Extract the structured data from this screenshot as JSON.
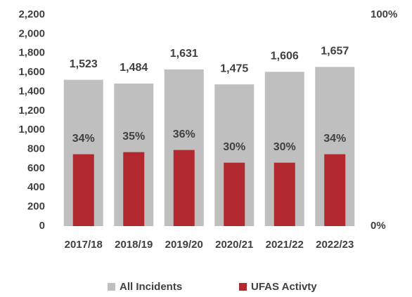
{
  "chart_data": {
    "type": "bar",
    "categories": [
      "2017/18",
      "2018/19",
      "2019/20",
      "2020/21",
      "2021/22",
      "2022/23"
    ],
    "series": [
      {
        "name": "All Incidents",
        "color": "#bfbfbf",
        "values": [
          1523,
          1484,
          1631,
          1475,
          1606,
          1657
        ],
        "value_labels": [
          "1,523",
          "1,484",
          "1,631",
          "1,475",
          "1,606",
          "1,657"
        ]
      },
      {
        "name": "UFAS Activty",
        "color": "#b1282e",
        "axis": "y2",
        "values": [
          34,
          35,
          36,
          30,
          30,
          34
        ],
        "value_labels": [
          "34%",
          "35%",
          "36%",
          "30%",
          "30%",
          "34%"
        ]
      }
    ],
    "ylim": [
      0,
      2200
    ],
    "yticks": [
      0,
      200,
      400,
      600,
      800,
      {
        "value": 1000,
        "label": "1,000"
      },
      {
        "value": 1200,
        "label": "1,200"
      },
      {
        "value": 1400,
        "label": "1,400"
      },
      {
        "value": 1600,
        "label": "1,600"
      },
      {
        "value": 1800,
        "label": "1,800"
      },
      {
        "value": 2000,
        "label": "2,000"
      },
      {
        "value": 2200,
        "label": "2,200"
      }
    ],
    "y2lim": [
      0,
      100
    ],
    "y2ticks": [
      {
        "value": 0,
        "label": "0%"
      },
      {
        "value": 100,
        "label": "100%"
      }
    ],
    "legend": "bottom"
  }
}
